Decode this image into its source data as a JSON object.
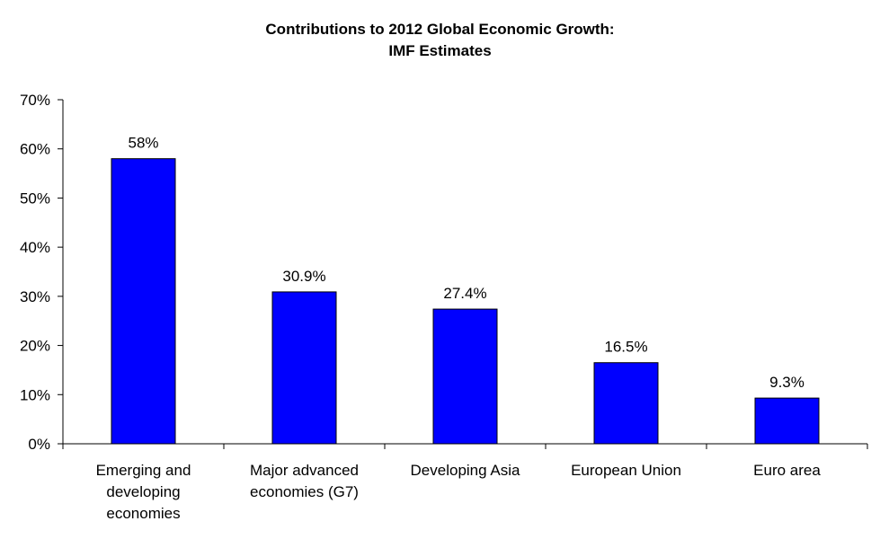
{
  "chart_data": {
    "type": "bar",
    "title_lines": [
      "Contributions to 2012 Global Economic Growth:",
      "IMF Estimates"
    ],
    "categories": [
      [
        "Emerging and",
        "developing",
        "economies"
      ],
      [
        "Major advanced",
        "economies (G7)"
      ],
      [
        "Developing Asia"
      ],
      [
        "European Union"
      ],
      [
        "Euro area"
      ]
    ],
    "values": [
      58,
      30.9,
      27.4,
      16.5,
      9.3
    ],
    "data_labels": [
      "58%",
      "30.9%",
      "27.4%",
      "16.5%",
      "9.3%"
    ],
    "y_ticks": [
      0,
      10,
      20,
      30,
      40,
      50,
      60,
      70
    ],
    "y_tick_labels": [
      "0%",
      "10%",
      "20%",
      "30%",
      "40%",
      "50%",
      "60%",
      "70%"
    ],
    "ylim": [
      0,
      70
    ],
    "xlabel": "",
    "ylabel": "",
    "grid": false,
    "legend": "none",
    "bar_color": "#0000FF",
    "bar_edge_color": "#000000"
  }
}
